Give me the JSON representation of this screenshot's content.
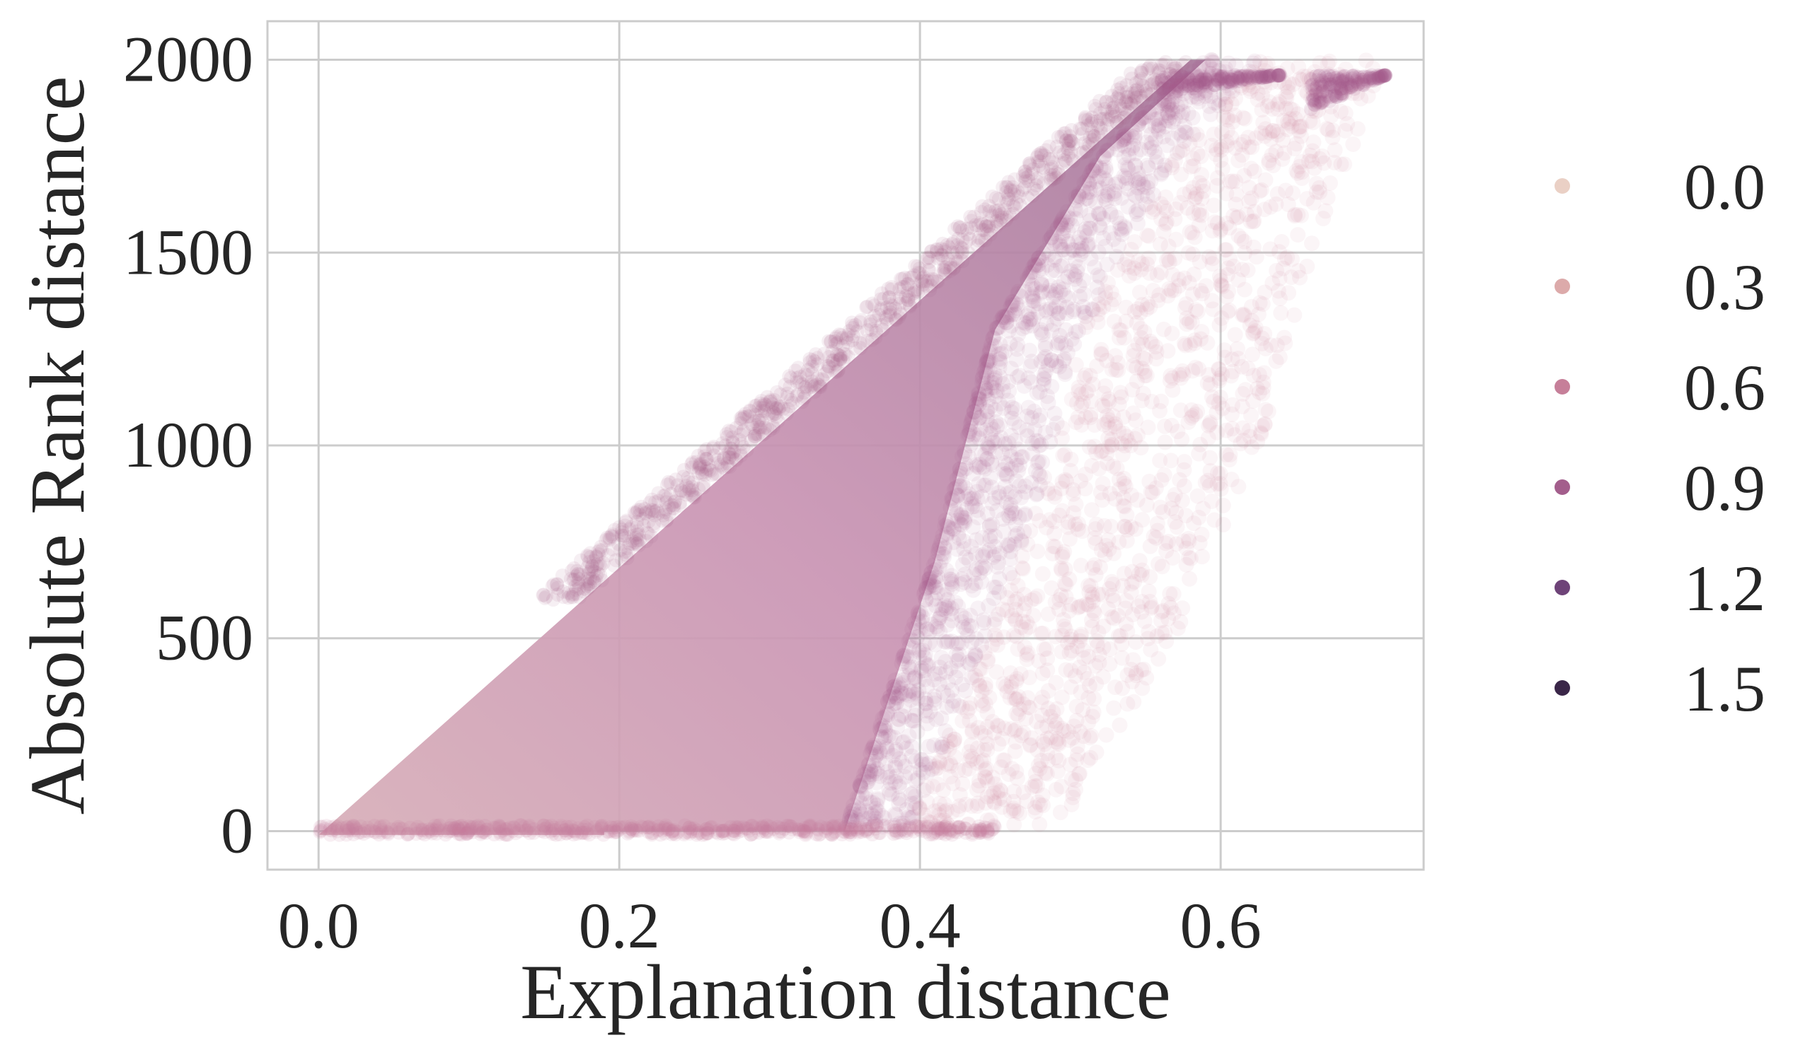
{
  "chart_data": {
    "type": "scatter",
    "xlabel": "Explanation distance",
    "ylabel": "Absolute Rank distance",
    "xlim": [
      -0.034,
      0.735
    ],
    "ylim": [
      -100,
      2100
    ],
    "xticks": [
      0.0,
      0.2,
      0.4,
      0.6
    ],
    "xtick_labels": [
      "0.0",
      "0.2",
      "0.4",
      "0.6"
    ],
    "yticks": [
      0,
      500,
      1000,
      1500,
      2000
    ],
    "ytick_labels": [
      "0",
      "500",
      "1000",
      "1500",
      "2000"
    ],
    "grid": true,
    "legend": {
      "placement": "right-outside",
      "entries": [
        {
          "label": "0.0",
          "color": "#ead0c5"
        },
        {
          "label": "0.3",
          "color": "#dcaaaa"
        },
        {
          "label": "0.6",
          "color": "#c67f99"
        },
        {
          "label": "0.9",
          "color": "#a35e8c"
        },
        {
          "label": "1.2",
          "color": "#6e4378"
        },
        {
          "label": "1.5",
          "color": "#3a2648"
        }
      ]
    },
    "regions": {
      "dense_upper_edge": [
        [
          0.0,
          0
        ],
        [
          0.58,
          2000
        ]
      ],
      "dense_front": [
        [
          0.19,
          0
        ],
        [
          0.35,
          0
        ],
        [
          0.41,
          700
        ],
        [
          0.45,
          1300
        ],
        [
          0.52,
          1750
        ],
        [
          0.59,
          2000
        ]
      ],
      "sparse_front": [
        [
          0.49,
          0
        ],
        [
          0.57,
          500
        ],
        [
          0.63,
          1050
        ],
        [
          0.66,
          1500
        ],
        [
          0.71,
          1990
        ]
      ]
    },
    "point_opacity": 0.08
  }
}
